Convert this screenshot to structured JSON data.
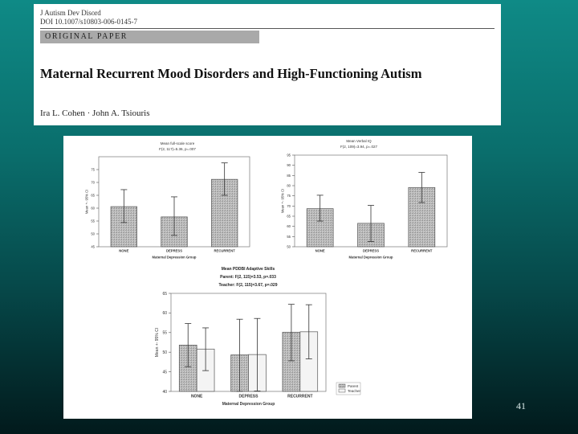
{
  "paper": {
    "journal": "J Autism Dev Disord",
    "doi": "DOI 10.1007/s10803-006-0145-7",
    "section": "ORIGINAL PAPER",
    "title": "Maternal Recurrent Mood Disorders and High-Functioning Autism",
    "authors": "Ira L. Cohen · John A. Tsiouris"
  },
  "slide": {
    "page_number": "41"
  },
  "colors": {
    "bar_fill": "#c8c8c8",
    "bar_stroke": "#555555",
    "section_bar": "#a9a9a9"
  },
  "chart_data": [
    {
      "type": "bar",
      "title": "Mean full-scale score",
      "subtitle": "F(2, 117)=5.36, p=.007",
      "xlabel": "Maternal Depression Group",
      "ylabel": "Mean +- 95% CI",
      "categories": [
        "NONE",
        "DEPRESS",
        "RECURRENT"
      ],
      "values": [
        60.6,
        56.6,
        71.2
      ],
      "ci_low": [
        54.4,
        49.4,
        65.0
      ],
      "ci_high": [
        67.2,
        64.4,
        77.6
      ],
      "ylim": [
        45,
        80
      ],
      "yticks": [
        45,
        50,
        55,
        60,
        65,
        70,
        75
      ],
      "ytick_labels": [
        "45",
        "50",
        "55",
        "60",
        "65",
        "70",
        "75"
      ]
    },
    {
      "type": "bar",
      "title": "Mean Verbal IQ",
      "subtitle": "F(2, 109)=3.94, p=.027",
      "xlabel": "Maternal Depression Group",
      "ylabel": "Mean +- 95% CI",
      "categories": [
        "NONE",
        "DEPRESS",
        "RECURRENT"
      ],
      "values": [
        68.7,
        61.5,
        79.1
      ],
      "ci_low": [
        62.6,
        52.6,
        71.7
      ],
      "ci_high": [
        75.3,
        70.3,
        86.5
      ],
      "ylim": [
        50,
        95
      ],
      "yticks": [
        50,
        55,
        60,
        65,
        70,
        75,
        80,
        85,
        90,
        95
      ],
      "ytick_labels": [
        "50",
        "55",
        "60",
        "65",
        "70",
        "75",
        "80",
        "85",
        "90",
        "95"
      ]
    },
    {
      "type": "bar",
      "title": "Mean PDDBI Adaptive Skills",
      "subtitle_lines": [
        "Parent: F(2, 115)=3.53, p=.033",
        "Teacher: F(2, 115)=3.67, p=.029"
      ],
      "xlabel": "Maternal Depression Group",
      "ylabel": "Mean +- 95% CI",
      "categories": [
        "NONE",
        "DEPRESS",
        "RECURRENT"
      ],
      "series": [
        {
          "name": "Parent",
          "values": [
            51.8,
            49.3,
            55.1
          ],
          "ci_low": [
            46.3,
            40.0,
            47.8
          ],
          "ci_high": [
            57.3,
            58.4,
            62.2
          ]
        },
        {
          "name": "Teacher",
          "values": [
            50.8,
            49.4,
            55.2
          ],
          "ci_low": [
            45.3,
            40.1,
            48.3
          ],
          "ci_high": [
            56.2,
            58.6,
            62.1
          ]
        }
      ],
      "ylim": [
        40,
        65
      ],
      "yticks": [
        40,
        45,
        50,
        55,
        60,
        65
      ],
      "ytick_labels": [
        "40",
        "45",
        "50",
        "55",
        "60",
        "65"
      ]
    }
  ]
}
